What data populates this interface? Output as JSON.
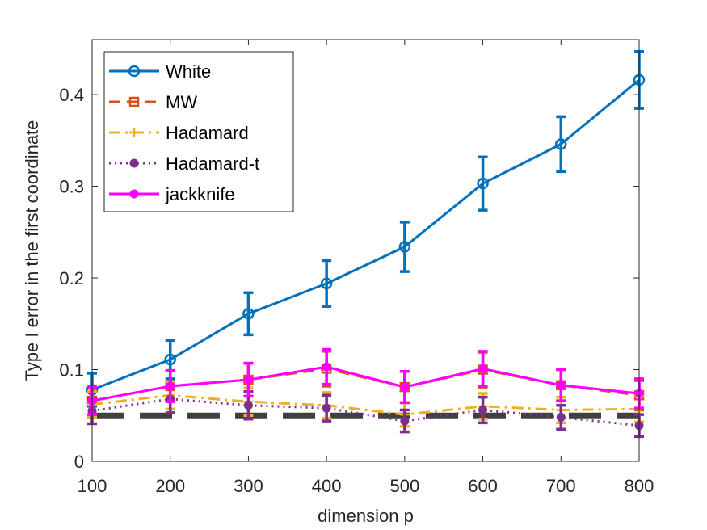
{
  "chart_data": {
    "type": "line",
    "title": "",
    "xlabel": "dimension p",
    "ylabel": "Type I error in the first coordinate",
    "xlim": [
      100,
      800
    ],
    "ylim": [
      0,
      0.46
    ],
    "x": [
      100,
      200,
      300,
      400,
      500,
      600,
      700,
      800
    ],
    "x_ticks": [
      100,
      200,
      300,
      400,
      500,
      600,
      700,
      800
    ],
    "y_ticks": [
      0,
      0.1,
      0.2,
      0.3,
      0.4
    ],
    "y_tick_labels": [
      "0",
      "0.1",
      "0.2",
      "0.3",
      "0.4"
    ],
    "grid": false,
    "legend_position": "top-left",
    "reference_line": {
      "y": 0.05,
      "color": "#404040",
      "style": "dashed"
    },
    "series": [
      {
        "name": "White",
        "color": "#0072BD",
        "marker": "circle",
        "line_style": "solid",
        "values": [
          0.078,
          0.111,
          0.161,
          0.194,
          0.234,
          0.303,
          0.346,
          0.416
        ],
        "err": [
          0.018,
          0.021,
          0.023,
          0.025,
          0.027,
          0.029,
          0.03,
          0.031
        ]
      },
      {
        "name": "MW",
        "color": "#D95319",
        "marker": "square",
        "line_style": "dashed",
        "values": [
          0.066,
          0.082,
          0.089,
          0.101,
          0.081,
          0.1,
          0.083,
          0.072
        ],
        "err": [
          0.015,
          0.017,
          0.018,
          0.019,
          0.017,
          0.019,
          0.017,
          0.016
        ]
      },
      {
        "name": "Hadamard",
        "color": "#EDB120",
        "marker": "plus",
        "line_style": "dashdot",
        "values": [
          0.062,
          0.072,
          0.065,
          0.061,
          0.051,
          0.06,
          0.056,
          0.057
        ],
        "err": [
          0.014,
          0.015,
          0.015,
          0.014,
          0.013,
          0.014,
          0.014,
          0.014
        ]
      },
      {
        "name": "Hadamard-t",
        "color": "#7E2F8E",
        "marker": "dot",
        "line_style": "dotted",
        "values": [
          0.055,
          0.068,
          0.061,
          0.058,
          0.044,
          0.056,
          0.048,
          0.039
        ],
        "err": [
          0.014,
          0.015,
          0.015,
          0.014,
          0.012,
          0.014,
          0.013,
          0.012
        ]
      },
      {
        "name": "jackknife",
        "color": "#FF00FF",
        "marker": "dot",
        "line_style": "solid",
        "values": [
          0.066,
          0.082,
          0.089,
          0.103,
          0.081,
          0.101,
          0.083,
          0.074
        ],
        "err": [
          0.015,
          0.017,
          0.018,
          0.019,
          0.017,
          0.019,
          0.017,
          0.016
        ]
      }
    ]
  }
}
